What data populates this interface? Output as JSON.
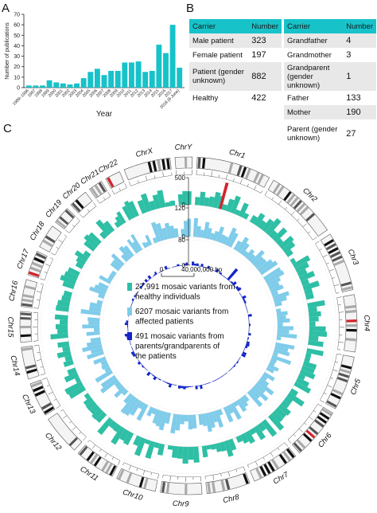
{
  "panel_a": {
    "letter": "A",
    "chart_data": {
      "type": "bar",
      "ylabel": "Number of publications",
      "xlabel": "Year",
      "ylim": [
        0,
        70
      ],
      "yticks": [
        0,
        10,
        20,
        30,
        40,
        50,
        60,
        70
      ],
      "categories": [
        "1989–1996",
        "1997",
        "1998",
        "1999",
        "2000",
        "2001",
        "2002",
        "2003",
        "2004",
        "2005",
        "2006",
        "2007",
        "2008",
        "2009",
        "2010",
        "2011",
        "2012",
        "2013",
        "2014",
        "2015",
        "2016",
        "2017",
        "2018 (8 June)"
      ],
      "category_labels": [
        "1989–1996",
        "1997",
        "1998",
        "1999",
        "2000",
        "2001",
        "2002",
        "2003",
        "2004",
        "2005",
        "2006",
        "2007",
        "2008",
        "2009",
        "2010",
        "2011",
        "2012",
        "2013",
        "2014",
        "2015",
        "2016",
        "2017",
        "2018 (8 June)"
      ],
      "values": [
        2,
        2,
        2,
        7,
        5,
        4,
        3,
        4,
        9,
        15,
        18,
        12,
        16,
        16,
        24,
        24,
        25,
        15,
        16,
        41,
        33,
        60,
        19
      ],
      "color": "#17c2c9"
    }
  },
  "panel_b": {
    "letter": "B",
    "left": {
      "headers": [
        "Carrier",
        "Number"
      ],
      "rows": [
        [
          "Male patient",
          "323"
        ],
        [
          "Female patient",
          "197"
        ],
        [
          "Patient (gender unknown)",
          "882"
        ],
        [
          "Healthy",
          "422"
        ]
      ]
    },
    "right": {
      "headers": [
        "Carrier",
        "Number"
      ],
      "rows": [
        [
          "Grandfather",
          "4"
        ],
        [
          "Grandmother",
          "3"
        ],
        [
          "Grandparent (gender unknown)",
          "1"
        ],
        [
          "Father",
          "133"
        ],
        [
          "Mother",
          "190"
        ],
        [
          "Parent (gender unknown)",
          "27"
        ]
      ]
    },
    "header_color": "#17c2c9"
  },
  "panel_c": {
    "letter": "C",
    "chromosomes": [
      "Chr1",
      "Chr2",
      "Chr3",
      "Chr4",
      "Chr5",
      "Chr6",
      "Chr7",
      "Chr8",
      "Chr9",
      "Chr10",
      "Chr11",
      "Chr12",
      "Chr13",
      "Chr14",
      "Chr15",
      "Chr16",
      "Chr17",
      "Chr18",
      "Chr19",
      "Chr20",
      "Chr21",
      "Chr22",
      "ChrX",
      "ChrY"
    ],
    "track_ticks": [
      "500",
      "0",
      "120",
      "0",
      "80",
      "0"
    ],
    "scale_bar": {
      "start": "0",
      "end": "40,000,000 bp"
    },
    "legend": [
      {
        "label_lines": [
          "27,991 mosaic variants from",
          "healthy individuals"
        ],
        "color": "#2ebfa5"
      },
      {
        "label_lines": [
          "6207 mosaic variants from",
          "affected patients"
        ],
        "color": "#7fccea"
      },
      {
        "label_lines": [
          "491 mosaic variants from",
          "parents/grandparents of",
          "the patients"
        ],
        "color": "#1326c9"
      }
    ],
    "track_colors": {
      "healthy": "#2ebfa5",
      "affected": "#7fccea",
      "parents": "#1326c9"
    }
  }
}
